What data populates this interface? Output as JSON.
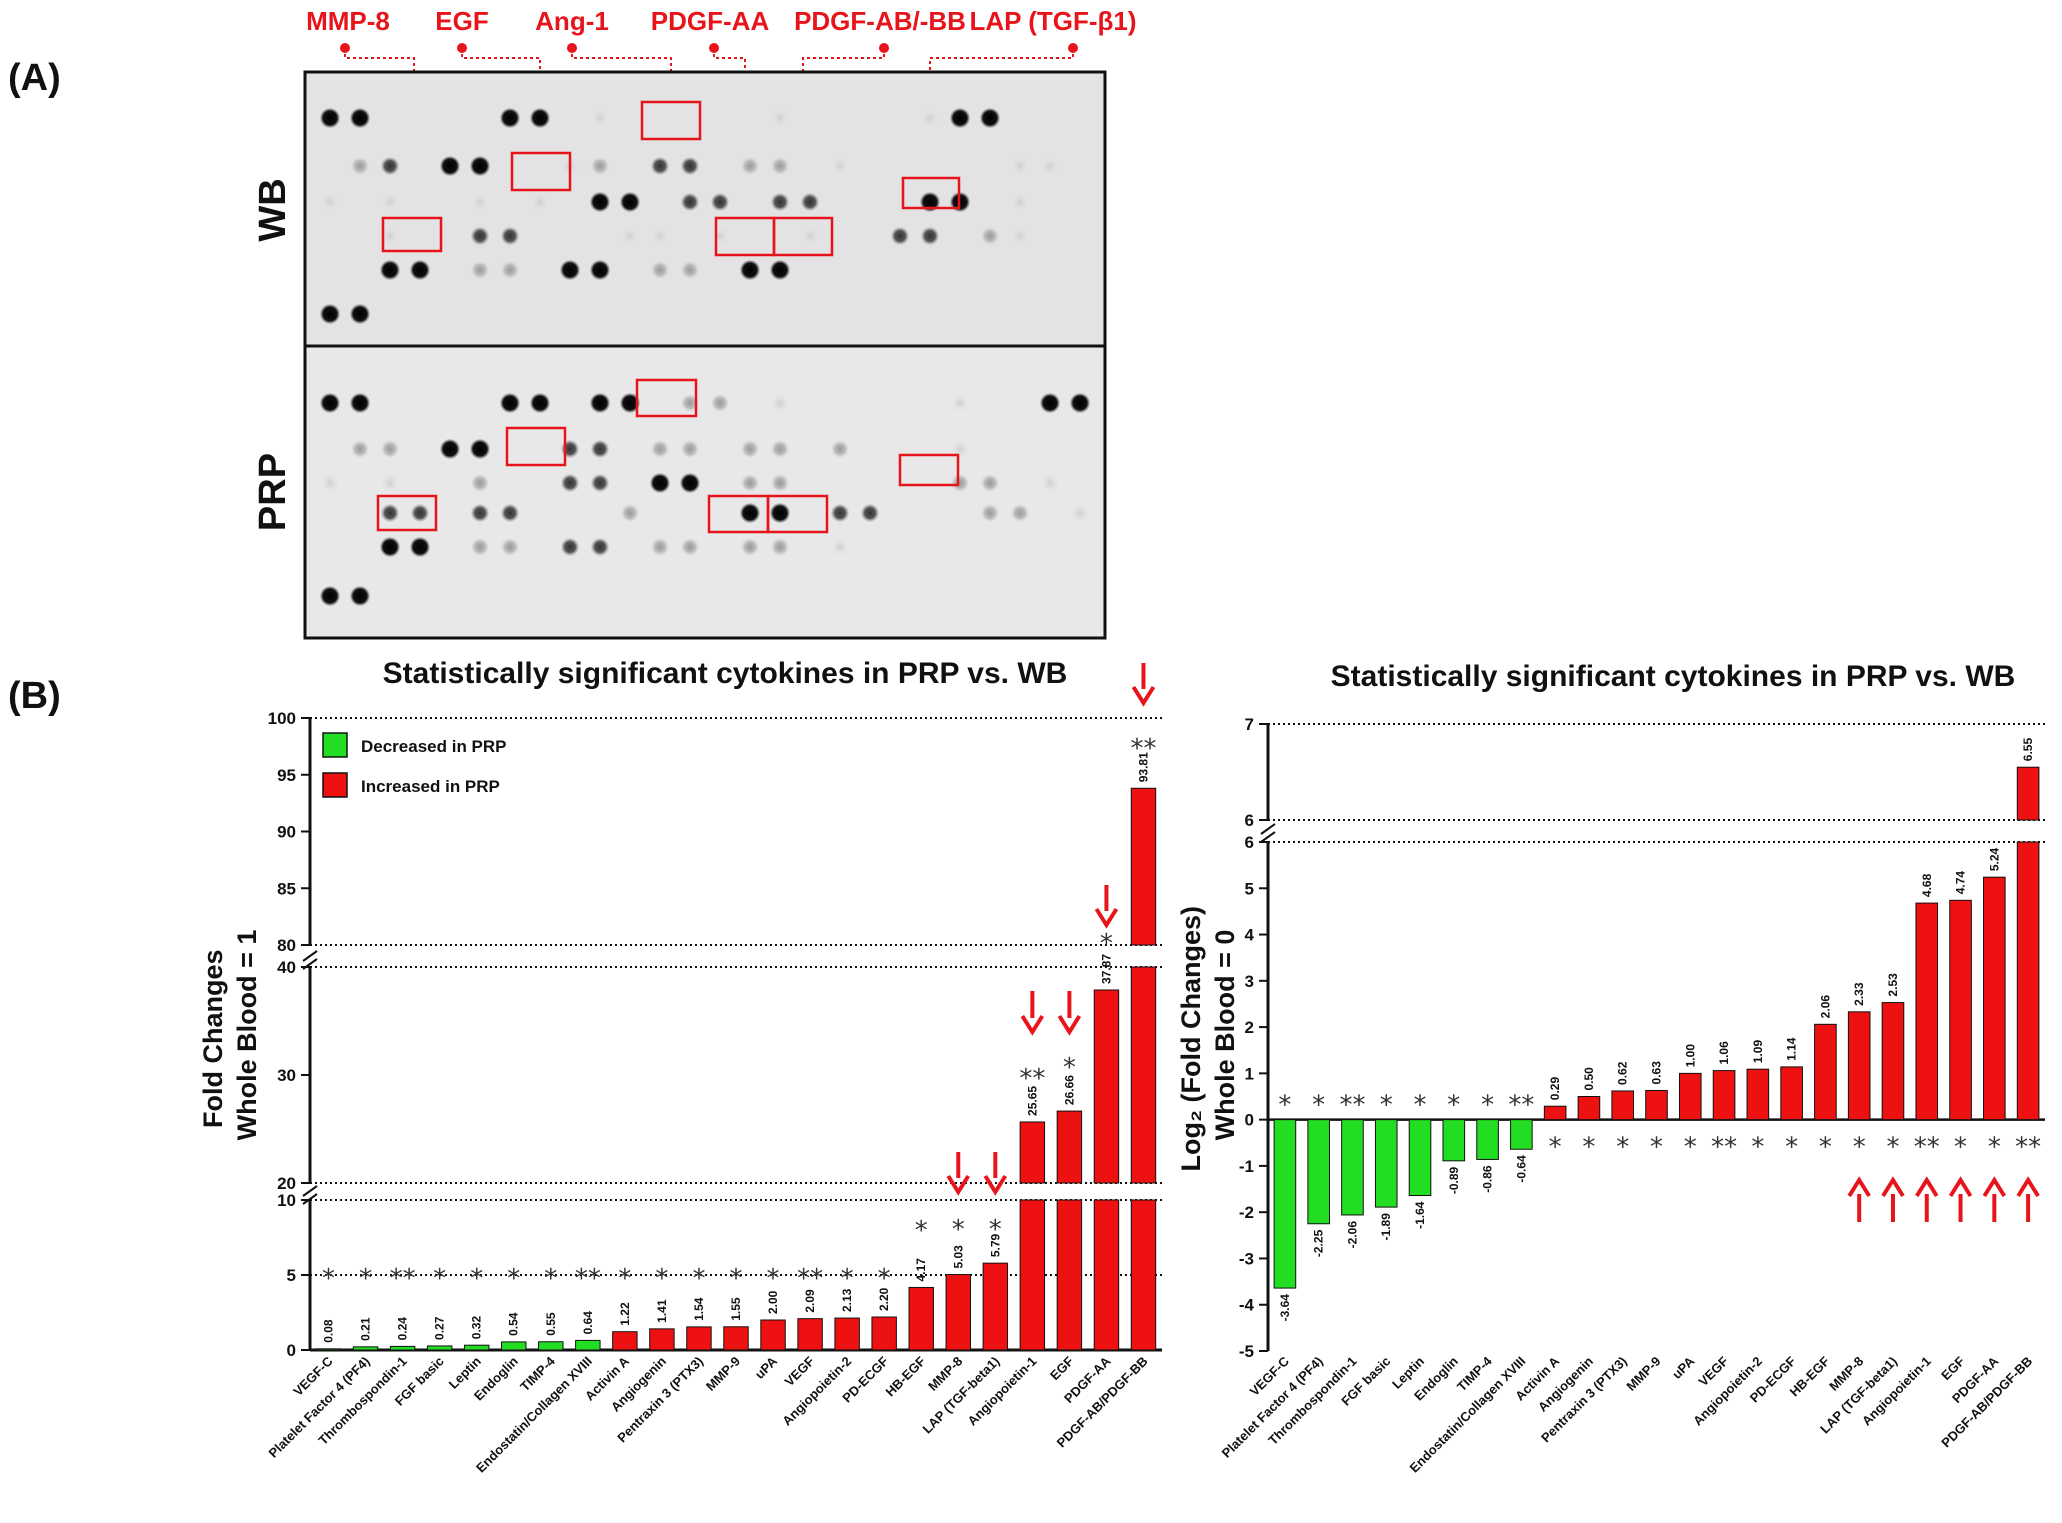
{
  "panel_a": {
    "label": "(A)",
    "proteins": [
      "MMP-8",
      "EGF",
      "Ang-1",
      "PDGF-AA",
      "PDGF-AB/-BB",
      "LAP (TGF-β1)"
    ],
    "rows": [
      "WB",
      "PRP"
    ]
  },
  "panel_b": {
    "label": "(B)"
  },
  "colors": {
    "decreased": "#22dd22",
    "increased": "#ee1111",
    "annotation": "#e8141b"
  },
  "chart_data": [
    {
      "type": "bar",
      "title": "Statistically significant cytokines in PRP vs. WB",
      "ylabel": [
        "Fold Changes",
        "Whole Blood = 1"
      ],
      "xlabel": "",
      "y_segments": [
        {
          "range": [
            0,
            10
          ],
          "ticks": [
            0,
            5,
            10
          ]
        },
        {
          "range": [
            20,
            40
          ],
          "ticks": [
            20,
            30,
            40
          ]
        },
        {
          "range": [
            80,
            100
          ],
          "ticks": [
            80,
            85,
            90,
            95,
            100
          ]
        }
      ],
      "reference_lines": [
        5,
        20,
        40,
        80,
        100
      ],
      "legend": [
        "Decreased in PRP",
        "Increased in PRP"
      ],
      "legend_position": "top-left",
      "categories": [
        "VEGF-C",
        "Platelet Factor 4 (PF4)",
        "Thrombospondin-1",
        "FGF basic",
        "Leptin",
        "Endoglin",
        "TIMP-4",
        "Endostatin/Collagen XVIII",
        "Activin A",
        "Angiogenin",
        "Pentraxin 3 (PTX3)",
        "MMP-9",
        "uPA",
        "VEGF",
        "Angiopoietin-2",
        "PD-ECGF",
        "HB-EGF",
        "MMP-8",
        "LAP (TGF-beta1)",
        "Angiopoietin-1",
        "EGF",
        "PDGF-AA",
        "PDGF-AB/PDGF-BB"
      ],
      "values": [
        0.08,
        0.21,
        0.24,
        0.27,
        0.32,
        0.54,
        0.55,
        0.64,
        1.22,
        1.41,
        1.54,
        1.55,
        2.0,
        2.09,
        2.13,
        2.2,
        4.17,
        5.03,
        5.79,
        25.65,
        26.66,
        37.87,
        93.81
      ],
      "value_labels": [
        "0.08",
        "0.21",
        "0.24",
        "0.27",
        "0.32",
        "0.54",
        "0.55",
        "0.64",
        "1.22",
        "1.41",
        "1.54",
        "1.55",
        "2.00",
        "2.09",
        "2.13",
        "2.20",
        "4.17",
        "5.03",
        "5.79",
        "25.65",
        "26.66",
        "37.87",
        "93.81"
      ],
      "significance": [
        "*",
        "*",
        "**",
        "*",
        "*",
        "*",
        "*",
        "**",
        "*",
        "*",
        "*",
        "*",
        "*",
        "**",
        "*",
        "*",
        "*",
        "*",
        "*",
        "**",
        "*",
        "*",
        "**"
      ],
      "direction": [
        "decreased",
        "decreased",
        "decreased",
        "decreased",
        "decreased",
        "decreased",
        "decreased",
        "decreased",
        "increased",
        "increased",
        "increased",
        "increased",
        "increased",
        "increased",
        "increased",
        "increased",
        "increased",
        "increased",
        "increased",
        "increased",
        "increased",
        "increased",
        "increased"
      ],
      "highlighted": [
        "MMP-8",
        "LAP (TGF-beta1)",
        "Angiopoietin-1",
        "EGF",
        "PDGF-AA",
        "PDGF-AB/PDGF-BB"
      ]
    },
    {
      "type": "bar",
      "title": "Statistically significant cytokines in PRP vs. WB",
      "ylabel": [
        "Log₂ (Fold Changes)",
        "Whole Blood = 0"
      ],
      "xlabel": "",
      "y_segments": [
        {
          "range": [
            -5,
            6
          ],
          "ticks": [
            -5,
            -4,
            -3,
            -2,
            -1,
            0,
            1,
            2,
            3,
            4,
            5,
            6
          ]
        },
        {
          "range": [
            6,
            7
          ],
          "ticks": [
            6,
            7
          ]
        }
      ],
      "reference_lines": [
        6,
        7
      ],
      "categories": [
        "VEGF-C",
        "Platelet Factor 4 (PF4)",
        "Thrombospondin-1",
        "FGF basic",
        "Leptin",
        "Endoglin",
        "TIMP-4",
        "Endostatin/Collagen XVIII",
        "Activin A",
        "Angiogenin",
        "Pentraxin 3 (PTX3)",
        "MMP-9",
        "uPA",
        "VEGF",
        "Angiopoietin-2",
        "PD-ECGF",
        "HB-EGF",
        "MMP-8",
        "LAP (TGF-beta1)",
        "Angiopoietin-1",
        "EGF",
        "PDGF-AA",
        "PDGF-AB/PDGF-BB"
      ],
      "values": [
        -3.64,
        -2.25,
        -2.06,
        -1.89,
        -1.64,
        -0.89,
        -0.86,
        -0.64,
        0.29,
        0.5,
        0.62,
        0.63,
        1.0,
        1.06,
        1.09,
        1.14,
        2.06,
        2.33,
        2.53,
        4.68,
        4.74,
        5.24,
        6.55
      ],
      "value_labels": [
        "-3.64",
        "-2.25",
        "-2.06",
        "-1.89",
        "-1.64",
        "-0.89",
        "-0.86",
        "-0.64",
        "0.29",
        "0.50",
        "0.62",
        "0.63",
        "1.00",
        "1.06",
        "1.09",
        "1.14",
        "2.06",
        "2.33",
        "2.53",
        "4.68",
        "4.74",
        "5.24",
        "6.55"
      ],
      "significance": [
        "*",
        "*",
        "**",
        "*",
        "*",
        "*",
        "*",
        "**",
        "*",
        "*",
        "*",
        "*",
        "*",
        "**",
        "*",
        "*",
        "*",
        "*",
        "*",
        "**",
        "*",
        "*",
        "**"
      ],
      "direction": [
        "decreased",
        "decreased",
        "decreased",
        "decreased",
        "decreased",
        "decreased",
        "decreased",
        "decreased",
        "increased",
        "increased",
        "increased",
        "increased",
        "increased",
        "increased",
        "increased",
        "increased",
        "increased",
        "increased",
        "increased",
        "increased",
        "increased",
        "increased",
        "increased"
      ],
      "highlighted": [
        "MMP-8",
        "LAP (TGF-beta1)",
        "Angiopoietin-1",
        "EGF",
        "PDGF-AA",
        "PDGF-AB/PDGF-BB"
      ]
    }
  ]
}
